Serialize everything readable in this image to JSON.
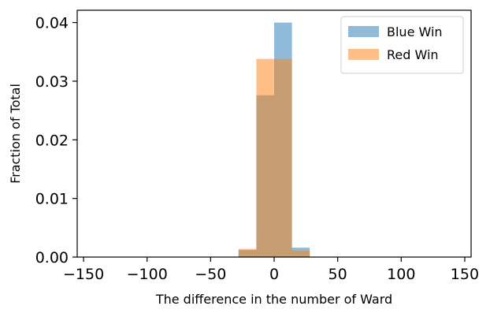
{
  "chart_data": {
    "type": "bar",
    "title": "",
    "xlabel": "The difference in the number of Ward",
    "ylabel": "Fraction of Total",
    "xlim": [
      -155,
      155
    ],
    "ylim": [
      0,
      0.0421
    ],
    "xticks": [
      -150,
      -100,
      -50,
      0,
      50,
      100,
      150
    ],
    "xtick_labels": [
      "−150",
      "−100",
      "−50",
      "0",
      "50",
      "100",
      "150"
    ],
    "yticks": [
      0,
      0.01,
      0.02,
      0.03,
      0.04
    ],
    "ytick_labels": [
      "0.00",
      "0.01",
      "0.02",
      "0.03",
      "0.04"
    ],
    "grid": false,
    "legend_position": "top-right",
    "bin_edges": [
      -28,
      -14,
      0,
      14,
      28
    ],
    "series": [
      {
        "name": "Blue Win",
        "color": "#1f77b4",
        "alpha": 0.5,
        "values": [
          0.0012,
          0.0276,
          0.04,
          0.0016
        ]
      },
      {
        "name": "Red Win",
        "color": "#ff7f0e",
        "alpha": 0.5,
        "values": [
          0.0014,
          0.0338,
          0.0338,
          0.0011
        ]
      }
    ]
  }
}
